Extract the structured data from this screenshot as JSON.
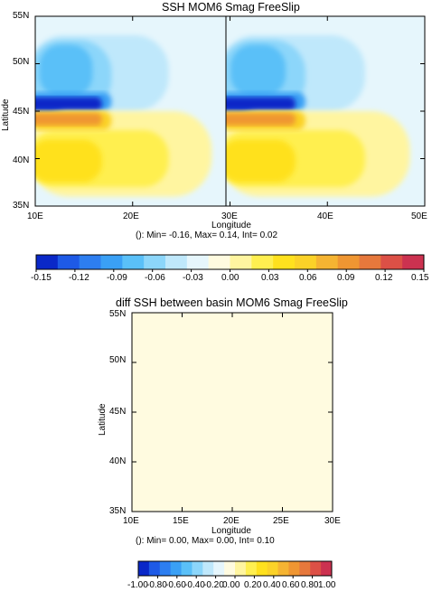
{
  "chart_data": [
    {
      "type": "heatmap",
      "title": "SSH MOM6 Smag FreeSlip",
      "xlabel": "Longitude",
      "ylabel": "Latitude",
      "x_ticks": [
        "10E",
        "20E",
        "30E",
        "40E",
        "50E"
      ],
      "y_ticks": [
        "35N",
        "40N",
        "45N",
        "50N",
        "55N"
      ],
      "xlim": [
        10,
        50
      ],
      "ylim": [
        35,
        55
      ],
      "panels": [
        {
          "lon_range": [
            10,
            30
          ]
        },
        {
          "lon_range": [
            30,
            50
          ]
        }
      ],
      "stats": "(): Min= -0.16, Max= 0.14, Int= 0.02",
      "colorbar": {
        "ticks": [
          "-0.15",
          "-0.12",
          "-0.09",
          "-0.06",
          "-0.03",
          "0.00",
          "0.03",
          "0.06",
          "0.09",
          "0.12",
          "0.15"
        ],
        "colors": [
          "#0a28c8",
          "#1e5ae6",
          "#2d7ef0",
          "#3aa0f5",
          "#5ac0f8",
          "#8cd6fa",
          "#bfe8fb",
          "#e6f6fc",
          "#fffbe0",
          "#fff5a0",
          "#ffef50",
          "#ffe11e",
          "#fbd228",
          "#f5b432",
          "#ef9632",
          "#e6783c",
          "#dc5046",
          "#cc3250"
        ]
      },
      "field": [
        {
          "level": 0.0,
          "lon": [
            10,
            30
          ],
          "lat": [
            35,
            55
          ]
        },
        {
          "level": -0.02,
          "lon": [
            10,
            28.5
          ],
          "lat": [
            45,
            54
          ]
        },
        {
          "level": -0.04,
          "lon": [
            10,
            24
          ],
          "lat": [
            45,
            53
          ]
        },
        {
          "level": -0.06,
          "lon": [
            10,
            18
          ],
          "lat": [
            45,
            52.5
          ]
        },
        {
          "level": -0.08,
          "lon": [
            11,
            16
          ],
          "lat": [
            46.5,
            52
          ]
        },
        {
          "level": -0.1,
          "lon": [
            10,
            18
          ],
          "lat": [
            45,
            47
          ]
        },
        {
          "level": -0.14,
          "lon": [
            10,
            17
          ],
          "lat": [
            45,
            46.5
          ]
        },
        {
          "level": 0.02,
          "lon": [
            10,
            28.5
          ],
          "lat": [
            36,
            45
          ]
        },
        {
          "level": 0.04,
          "lon": [
            10,
            24
          ],
          "lat": [
            37,
            43
          ]
        },
        {
          "level": 0.06,
          "lon": [
            10,
            17
          ],
          "lat": [
            37.5,
            42
          ]
        },
        {
          "level": 0.08,
          "lon": [
            10,
            18
          ],
          "lat": [
            43,
            45
          ]
        },
        {
          "level": 0.12,
          "lon": [
            10,
            17
          ],
          "lat": [
            43.5,
            44.8
          ]
        }
      ]
    },
    {
      "type": "heatmap",
      "title": "diff SSH between basin MOM6 Smag FreeSlip",
      "xlabel": "Longitude",
      "ylabel": "Latitude",
      "x_ticks": [
        "10E",
        "15E",
        "20E",
        "25E",
        "30E"
      ],
      "y_ticks": [
        "35N",
        "40N",
        "45N",
        "50N",
        "55N"
      ],
      "xlim": [
        10,
        30
      ],
      "ylim": [
        35,
        55
      ],
      "stats": "(): Min= 0.00, Max= 0.00, Int= 0.10",
      "field_value": 0.0,
      "fill_color": "#fffbe0",
      "colorbar": {
        "ticks": [
          "-1.00",
          "-0.80",
          "-0.60",
          "-0.40",
          "-0.20",
          "0.00",
          "0.20",
          "0.40",
          "0.60",
          "0.80",
          "1.00"
        ],
        "colors": [
          "#0a28c8",
          "#1e5ae6",
          "#2d7ef0",
          "#3aa0f5",
          "#5ac0f8",
          "#8cd6fa",
          "#bfe8fb",
          "#e6f6fc",
          "#fffbe0",
          "#fff5a0",
          "#ffef50",
          "#ffe11e",
          "#fbd228",
          "#f5b432",
          "#ef9632",
          "#e6783c",
          "#dc5046",
          "#cc3250"
        ]
      }
    }
  ]
}
